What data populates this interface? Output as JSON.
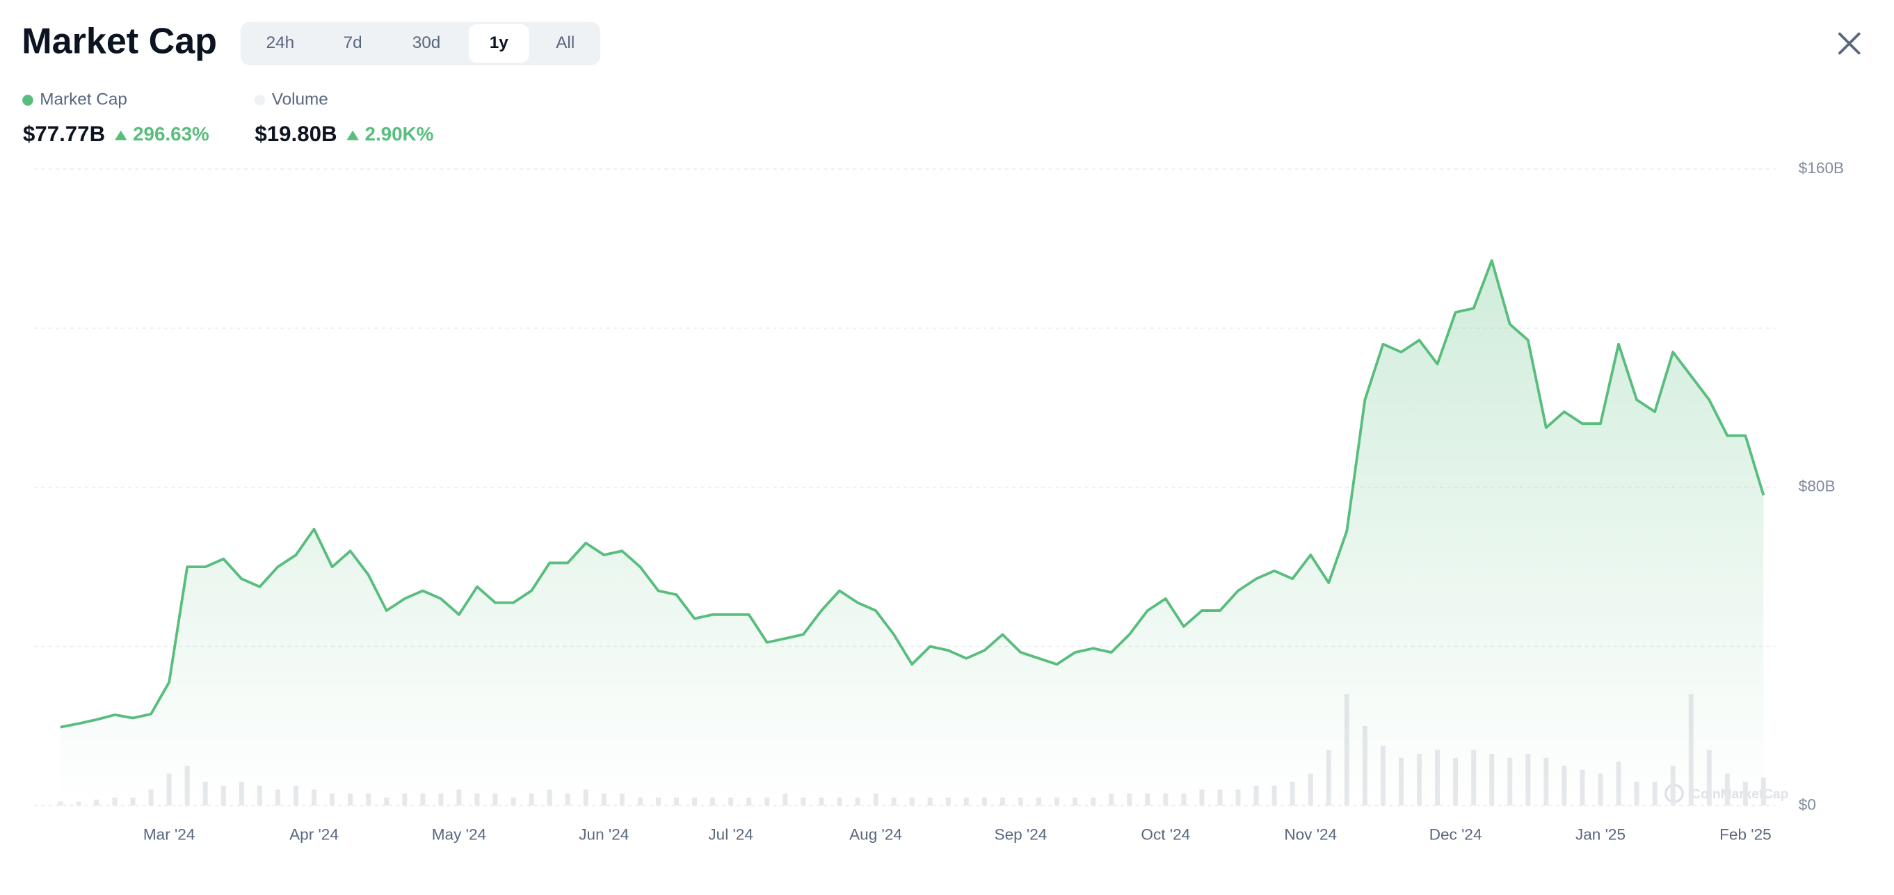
{
  "header": {
    "title": "Market Cap",
    "tabs": [
      "24h",
      "7d",
      "30d",
      "1y",
      "All"
    ],
    "active_tab": "1y",
    "stats": [
      {
        "label": "Market Cap",
        "value": "$77.77B",
        "change": "296.63%"
      },
      {
        "label": "Volume",
        "value": "$19.80B",
        "change": "2.90K%"
      }
    ],
    "watermark": "CoinMarketCap"
  },
  "chart_data": {
    "type": "line",
    "up_color": "#58bd7d",
    "categories": [
      null,
      null,
      null,
      null,
      null,
      null,
      "Mar '24",
      null,
      null,
      null,
      null,
      null,
      null,
      null,
      "Apr '24",
      null,
      null,
      null,
      null,
      null,
      null,
      null,
      "May '24",
      null,
      null,
      null,
      null,
      null,
      null,
      null,
      "Jun '24",
      null,
      null,
      null,
      null,
      null,
      null,
      "Jul '24",
      null,
      null,
      null,
      null,
      null,
      null,
      null,
      "Aug '24",
      null,
      null,
      null,
      null,
      null,
      null,
      null,
      "Sep '24",
      null,
      null,
      null,
      null,
      null,
      null,
      null,
      "Oct '24",
      null,
      null,
      null,
      null,
      null,
      null,
      null,
      "Nov '24",
      null,
      null,
      null,
      null,
      null,
      null,
      null,
      "Dec '24",
      null,
      null,
      null,
      null,
      null,
      null,
      null,
      "Jan '25",
      null,
      null,
      null,
      null,
      null,
      null,
      null,
      "Feb '25",
      null
    ],
    "series": [
      {
        "name": "Market Cap",
        "color": "#58bd7d",
        "values": [
          19.7,
          20.6,
          21.6,
          22.8,
          22,
          23,
          31,
          60,
          60,
          62,
          57,
          55,
          60,
          63,
          69.5,
          60,
          64,
          58,
          49,
          52,
          54,
          52,
          48,
          55,
          51,
          51,
          54,
          61,
          61,
          66,
          63,
          64,
          60,
          54,
          53,
          47,
          48,
          48,
          48,
          41,
          42,
          43,
          49,
          54,
          51,
          49,
          43,
          35.5,
          40,
          39,
          37,
          39,
          43,
          38.5,
          37,
          35.5,
          38.5,
          39.5,
          38.5,
          43,
          49,
          52,
          45,
          49,
          49,
          54,
          57,
          59,
          57,
          63,
          56,
          69,
          102,
          116,
          114,
          117,
          111,
          124,
          125,
          137,
          121,
          117,
          95,
          99,
          96,
          96,
          116,
          102,
          99,
          114,
          108,
          102,
          93,
          93,
          78
        ]
      },
      {
        "name": "Volume",
        "color": "#e6e8ec",
        "values": [
          1,
          1,
          1.5,
          2,
          2,
          4,
          8,
          10,
          6,
          5,
          6,
          5,
          4,
          5,
          4,
          3,
          3,
          3,
          2,
          3,
          3,
          3,
          4,
          3,
          3,
          2,
          3,
          4,
          3,
          4,
          3,
          3,
          2,
          2,
          2,
          2,
          2,
          2,
          2,
          2,
          3,
          2,
          2,
          2,
          2,
          3,
          2,
          2,
          2,
          2,
          2,
          2,
          2,
          2,
          2,
          2,
          2,
          2,
          3,
          3,
          3,
          3,
          3,
          4,
          4,
          4,
          5,
          5,
          6,
          8,
          14,
          28,
          20,
          15,
          12,
          13,
          14,
          12,
          14,
          13,
          12,
          13,
          12,
          10,
          9,
          8,
          11,
          6,
          6,
          10,
          28,
          14,
          8,
          6,
          7
        ]
      }
    ],
    "ylim": [
      0,
      160
    ],
    "yticks": [
      {
        "value": 0,
        "label": "$0"
      },
      {
        "value": 80,
        "label": "$80B"
      },
      {
        "value": 160,
        "label": "$160B"
      }
    ],
    "ygrid": [
      0,
      40,
      80,
      120,
      160
    ],
    "grid": true
  }
}
